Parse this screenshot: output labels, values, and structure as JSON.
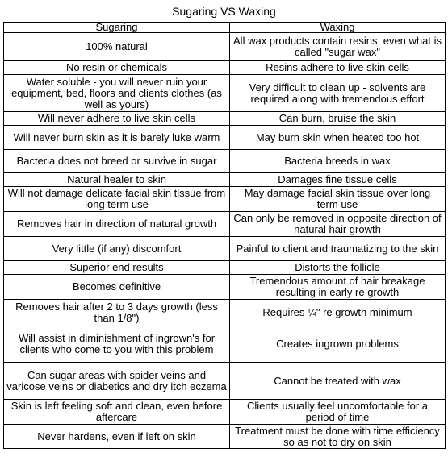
{
  "title": "Sugaring VS Waxing",
  "headers": [
    "Sugaring",
    "Waxing"
  ],
  "rows": [
    {
      "sugaring": "100% natural",
      "waxing": "All wax products contain resins, even what is called \"sugar wax\""
    },
    {
      "sugaring": "No resin or chemicals",
      "waxing": "Resins adhere to live skin cells"
    },
    {
      "sugaring": "Water soluble - you will never ruin your equipment, bed, floors and clients clothes (as well as yours)",
      "waxing": "Very difficult to clean up - solvents are required along with tremendous effort"
    },
    {
      "sugaring": "Will never adhere to live skin cells",
      "waxing": "Can burn, bruise the skin"
    },
    {
      "sugaring": "Will never burn skin as it is barely luke warm",
      "waxing": "May burn skin when heated too hot"
    },
    {
      "sugaring": "Bacteria does not breed or survive in sugar",
      "waxing": "Bacteria breeds in wax"
    },
    {
      "sugaring": "Natural healer to skin",
      "waxing": "Damages fine tissue cells"
    },
    {
      "sugaring": "Will not damage delicate facial skin tissue from long term use",
      "waxing": "May damage facial skin tissue over long term use"
    },
    {
      "sugaring": "Removes hair in direction of natural growth",
      "waxing": "Can only be removed in opposite direction of natural hair growth"
    },
    {
      "sugaring": "Very little (if any) discomfort",
      "waxing": "Painful to client and traumatizing to the skin"
    },
    {
      "sugaring": "Superior end results",
      "waxing": "Distorts the follicle"
    },
    {
      "sugaring": "Becomes definitive",
      "waxing": "Tremendous amount of hair breakage resulting in early re growth"
    },
    {
      "sugaring": "Removes hair after 2 to 3 days growth (less than 1/8\")",
      "waxing": "Requires ¼\" re growth minimum"
    },
    {
      "sugaring": "Will assist in diminishment of ingrown's for clients who come to you with this problem",
      "waxing": "Creates ingrown problems"
    },
    {
      "sugaring": "Can sugar areas with spider veins and varicose veins or diabetics and dry itch eczema",
      "waxing": "Cannot be treated with wax"
    },
    {
      "sugaring": "Skin is left feeling soft and clean, even before aftercare",
      "waxing": "Clients usually feel uncomfortable for a period of time"
    },
    {
      "sugaring": "Never hardens, even if left on skin",
      "waxing": "Treatment must be done with time efficiency so as not to dry on skin"
    }
  ]
}
